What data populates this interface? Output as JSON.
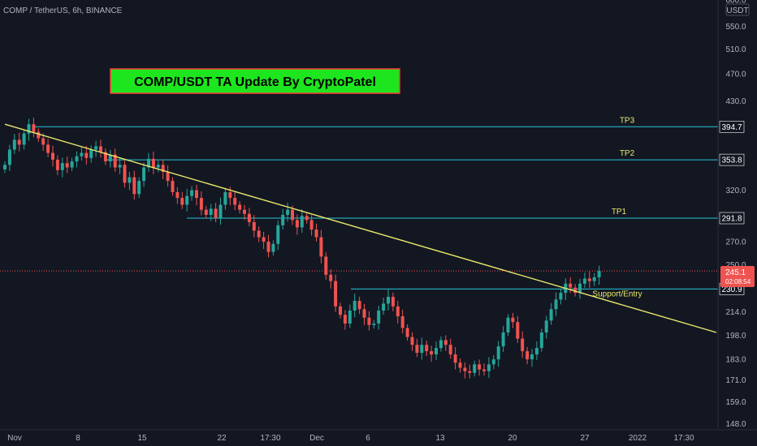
{
  "header": {
    "title": "COMP / TetherUS, 6h, BINANCE"
  },
  "banner": {
    "text": "COMP/USDT TA Update By CryptoPatel"
  },
  "currency_badge": "USDT",
  "colors": {
    "background": "#131722",
    "up": "#26a69a",
    "down": "#ef5350",
    "level_line": "#26c6da",
    "trend_line": "#e8e86a",
    "banner_bg": "#1ee61e",
    "label_text": "#e8e86a"
  },
  "chart_data": {
    "type": "candlestick",
    "y_scale": "log",
    "ylim": [
      145,
      600
    ],
    "y_ticks": [
      "600.0",
      "550.0",
      "510.0",
      "470.0",
      "430.0",
      "320.0",
      "270.0",
      "250.0",
      "214.0",
      "198.0",
      "183.0",
      "171.0",
      "159.0",
      "148.0"
    ],
    "x_ticks": [
      "Nov",
      "8",
      "15",
      "22",
      "17:30",
      "Dec",
      "6",
      "13",
      "20",
      "27",
      "2022",
      "17:30"
    ],
    "levels": [
      {
        "name": "TP3",
        "value": 394.7,
        "label": "394.7"
      },
      {
        "name": "TP2",
        "value": 353.8,
        "label": "353.8"
      },
      {
        "name": "TP1",
        "value": 291.8,
        "label": "291.8"
      },
      {
        "name": "Support/Entry",
        "value": 230.9,
        "label": "230.9"
      }
    ],
    "current_price": {
      "value": 245.1,
      "label": "245.1",
      "countdown": "02:08:54"
    },
    "trendline": {
      "start_index": 0,
      "start_value": 398,
      "end_index": 236,
      "end_value": 200
    },
    "closes": [
      348,
      366,
      378,
      372,
      386,
      398,
      388,
      380,
      372,
      362,
      354,
      342,
      350,
      345,
      352,
      358,
      362,
      356,
      366,
      370,
      363,
      352,
      360,
      345,
      348,
      328,
      334,
      316,
      330,
      345,
      355,
      345,
      348,
      340,
      330,
      318,
      312,
      305,
      314,
      320,
      312,
      300,
      295,
      301,
      292,
      305,
      318,
      312,
      305,
      300,
      296,
      288,
      280,
      274,
      270,
      261,
      268,
      285,
      295,
      300,
      290,
      283,
      294,
      290,
      281,
      274,
      257,
      242,
      237,
      218,
      212,
      206,
      215,
      222,
      216,
      210,
      205,
      206,
      215,
      220,
      225,
      218,
      211,
      203,
      197,
      192,
      187,
      192,
      188,
      186,
      190,
      195,
      192,
      186,
      181,
      178,
      176,
      175,
      180,
      177,
      176,
      180,
      183,
      191,
      200,
      210,
      207,
      196,
      188,
      183,
      186,
      190,
      200,
      208,
      216,
      223,
      228,
      235,
      232,
      228,
      235,
      239,
      237,
      240,
      245
    ]
  }
}
